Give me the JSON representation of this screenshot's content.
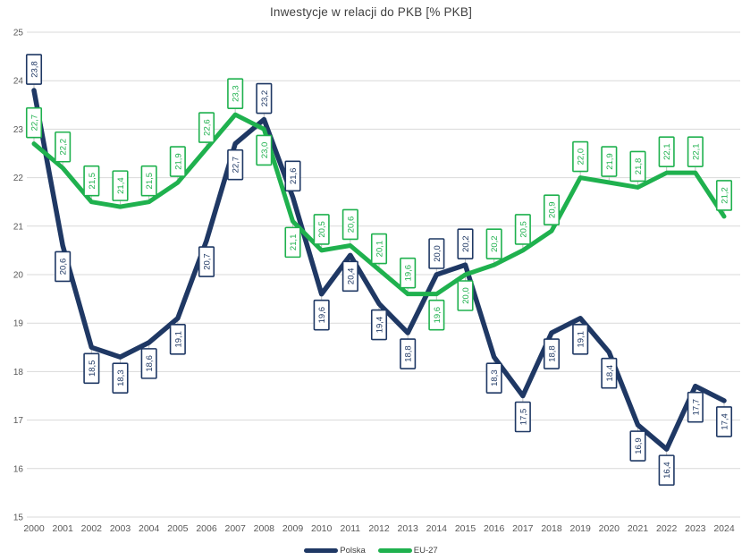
{
  "title": "Inwestycje w relacji do PKB [% PKB]",
  "legend": {
    "position": "bottom",
    "items": [
      "Polska",
      "EU-27"
    ]
  },
  "style": {
    "polska_color": "#1f3864",
    "eu27_color": "#1fb14e",
    "grid_color": "#d9d9d9",
    "axis_text_color": "#595959",
    "title_color": "#3f3f3f",
    "leader_color": "#c0c0c0",
    "label_bg": "#ffffff",
    "background": "#ffffff"
  },
  "chart_data": {
    "type": "line",
    "title": "Inwestycje w relacji do PKB [% PKB]",
    "categories": [
      2000,
      2001,
      2002,
      2003,
      2004,
      2005,
      2006,
      2007,
      2008,
      2009,
      2010,
      2011,
      2012,
      2013,
      2014,
      2015,
      2016,
      2017,
      2018,
      2019,
      2020,
      2021,
      2022,
      2023,
      2024
    ],
    "series": [
      {
        "name": "Polska",
        "color": "#1f3864",
        "values": [
          23.8,
          20.6,
          18.5,
          18.3,
          18.6,
          19.1,
          20.7,
          22.7,
          23.2,
          21.6,
          19.6,
          20.4,
          19.4,
          18.8,
          20.0,
          20.2,
          18.3,
          17.5,
          18.8,
          19.1,
          18.4,
          16.9,
          16.4,
          17.7,
          17.4
        ],
        "label_side": [
          "above",
          "below",
          "below",
          "below",
          "below",
          "below",
          "below",
          "below",
          "above",
          "above",
          "below",
          "below",
          "below",
          "below",
          "above",
          "above",
          "below",
          "below",
          "below",
          "below",
          "below",
          "below",
          "below",
          "below",
          "below"
        ]
      },
      {
        "name": "EU-27",
        "color": "#1fb14e",
        "values": [
          22.7,
          22.2,
          21.5,
          21.4,
          21.5,
          21.9,
          22.6,
          23.3,
          23.0,
          21.1,
          20.5,
          20.6,
          20.1,
          19.6,
          19.6,
          20.0,
          20.2,
          20.5,
          20.9,
          22.0,
          21.9,
          21.8,
          22.1,
          22.1,
          21.2
        ],
        "label_side": [
          "above",
          "above",
          "above",
          "above",
          "above",
          "above",
          "above",
          "above",
          "below",
          "below",
          "above",
          "above",
          "above",
          "above",
          "below",
          "below",
          "above",
          "above",
          "above",
          "above",
          "above",
          "above",
          "above",
          "above",
          "above"
        ]
      }
    ],
    "ylim": [
      15,
      25
    ],
    "yticks": [
      15,
      16,
      17,
      18,
      19,
      20,
      21,
      22,
      23,
      24,
      25
    ],
    "grid": true,
    "legend_position": "bottom",
    "decimal_separator": ","
  }
}
